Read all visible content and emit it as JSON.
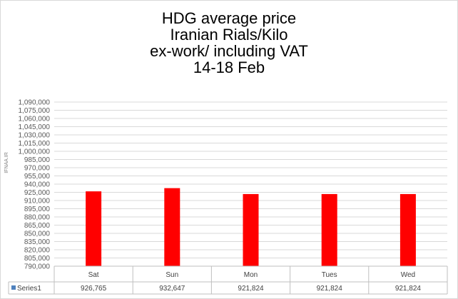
{
  "chart_data": {
    "type": "bar",
    "title_lines": [
      "HDG average price",
      "Iranian Rials/Kilo",
      "ex-work/ including VAT",
      "14-18 Feb"
    ],
    "watermark": "IFNAA.IR",
    "categories": [
      "Sat",
      "Sun",
      "Mon",
      "Tues",
      "Wed"
    ],
    "series": [
      {
        "name": "Series1",
        "values": [
          926765,
          932647,
          921824,
          921824,
          921824
        ],
        "color": "#ff0000"
      }
    ],
    "value_labels": [
      "926,765",
      "932,647",
      "921,824",
      "921,824",
      "921,824"
    ],
    "ylim": [
      790000,
      1090000
    ],
    "ytick_step": 15000,
    "grid": true,
    "legend": "data-table",
    "legend_key_color": "#4f81bd"
  }
}
